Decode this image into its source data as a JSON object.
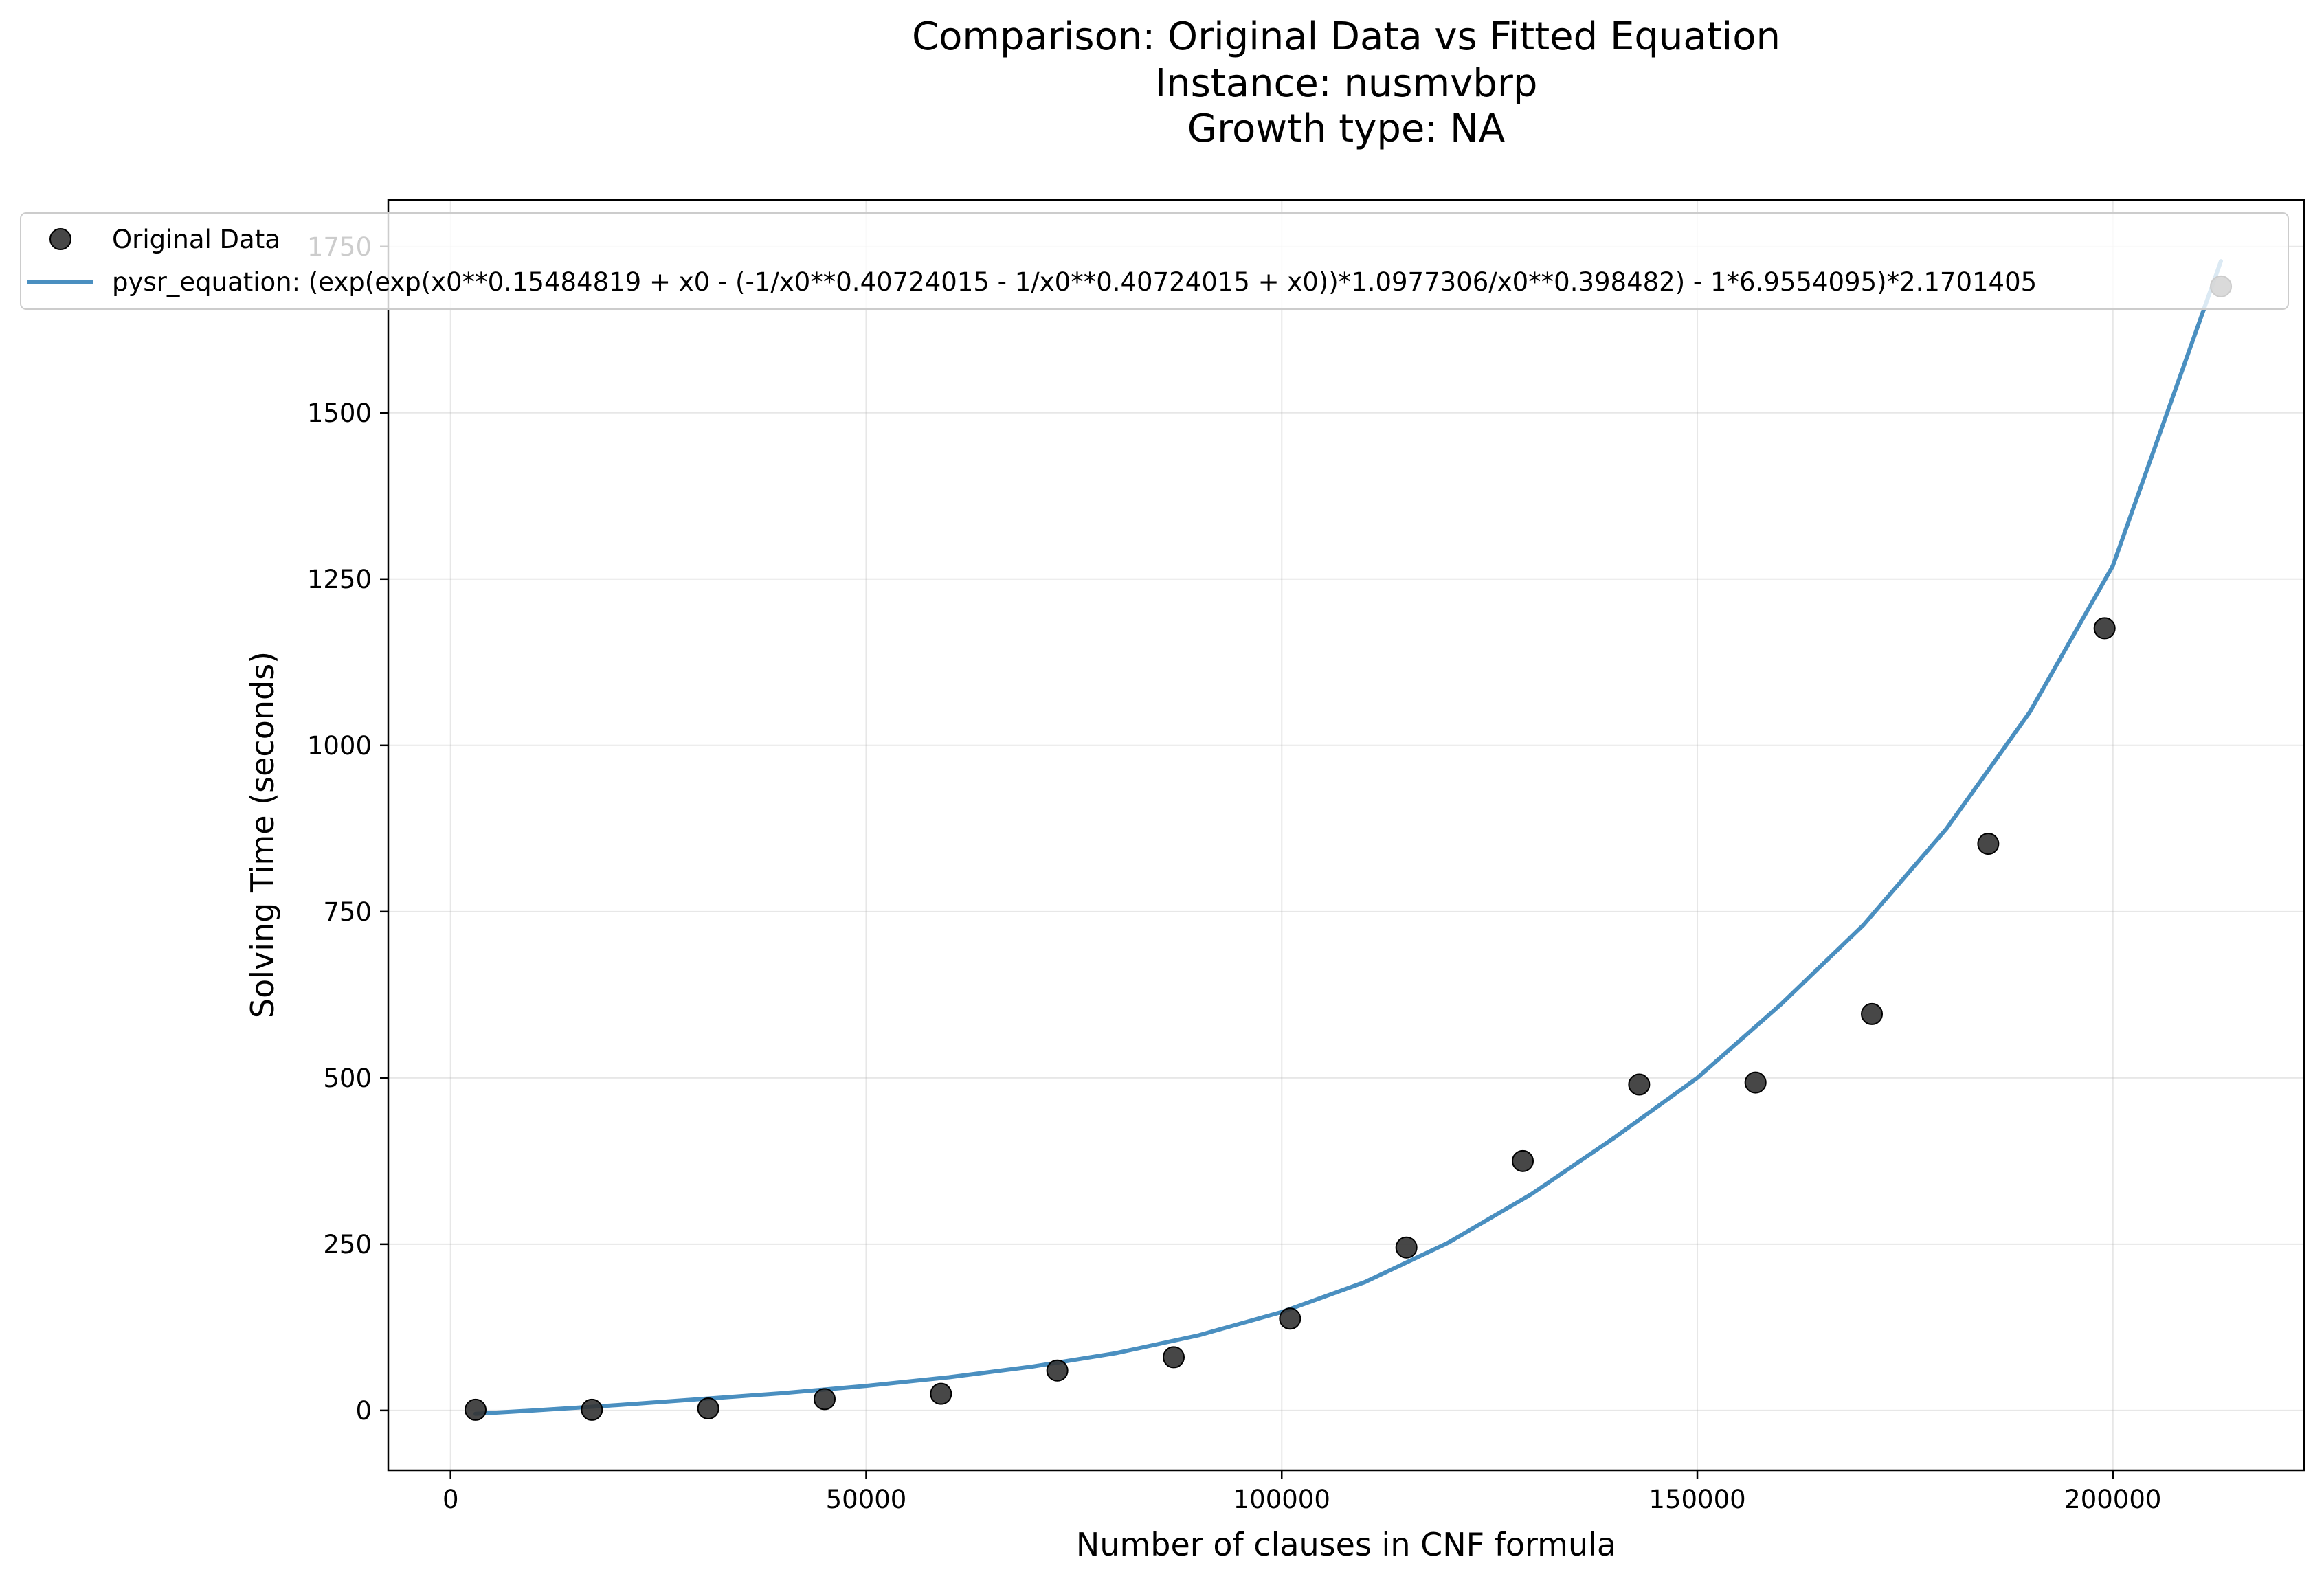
{
  "chart_data": {
    "type": "scatter",
    "title_lines": [
      "Comparison: Original Data vs Fitted Equation",
      "Instance: nusmvbrp",
      "Growth type: NA"
    ],
    "xlabel": "Number of clauses in CNF formula",
    "ylabel": "Solving Time (seconds)",
    "xlim": [
      -7500,
      223000
    ],
    "ylim": [
      -90,
      1820
    ],
    "xticks": [
      0,
      50000,
      100000,
      150000,
      200000
    ],
    "yticks": [
      0,
      250,
      500,
      750,
      1000,
      1250,
      1500,
      1750
    ],
    "grid": true,
    "legend_placement": "upper-left",
    "series": [
      {
        "name": "Original Data",
        "kind": "scatter",
        "color": "#333333",
        "x": [
          3000,
          17000,
          31000,
          45000,
          59000,
          73000,
          87000,
          101000,
          115000,
          129000,
          143000,
          157000,
          171000,
          185000,
          199000,
          213000
        ],
        "y": [
          1,
          1,
          3,
          17,
          25,
          60,
          80,
          138,
          245,
          375,
          490,
          493,
          596,
          852,
          1176,
          1690
        ]
      },
      {
        "name": "pysr_equation: (exp(exp(x0**0.15484819 + x0 - (-1/x0**0.40724015 - 1/x0**0.40724015 + x0))*1.0977306/x0**0.398482) - 1*6.9554095)*2.1701405",
        "kind": "line",
        "color": "#4a8fc0",
        "x": [
          3000,
          10000,
          20000,
          30000,
          40000,
          50000,
          60000,
          70000,
          80000,
          90000,
          100000,
          110000,
          120000,
          130000,
          140000,
          150000,
          160000,
          170000,
          180000,
          190000,
          200000,
          213000
        ],
        "y": [
          -5,
          0,
          8,
          17,
          26,
          37,
          50,
          66,
          86,
          113,
          148,
          193,
          252,
          325,
          410,
          500,
          610,
          730,
          875,
          1050,
          1270,
          1728
        ]
      }
    ]
  }
}
